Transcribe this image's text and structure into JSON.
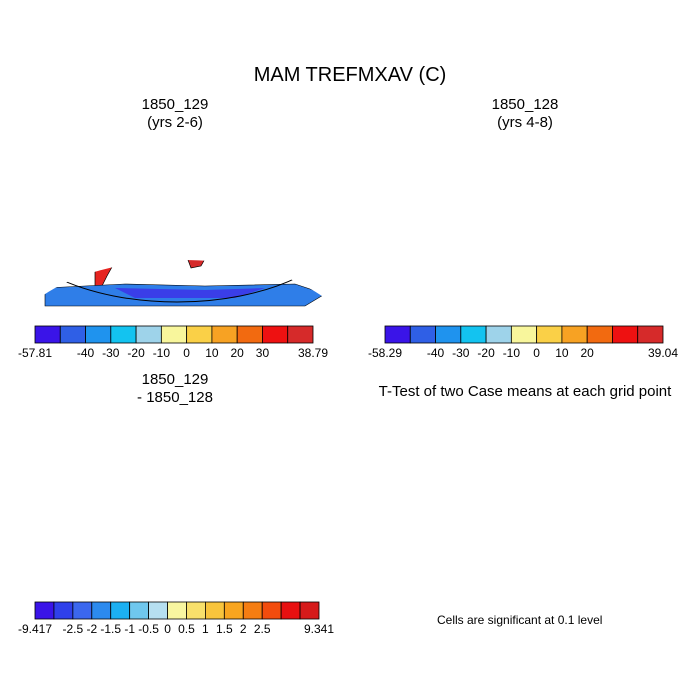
{
  "title": "MAM TREFMXAV (C)",
  "panels": [
    {
      "title_line1": "1850_129",
      "title_line2": "(yrs 2-6)"
    },
    {
      "title_line1": "1850_128",
      "title_line2": "(yrs 4-8)"
    },
    {
      "title_line1": "1850_129",
      "title_line2": "- 1850_128"
    },
    {
      "title_line1": "T-Test of two Case means at each grid point",
      "title_line2": ""
    }
  ],
  "colorbars": [
    {
      "colors": [
        "#3a14e8",
        "#2f5fe6",
        "#1f93ee",
        "#13c3f0",
        "#9ed3ea",
        "#f8f69c",
        "#fad047",
        "#f7a223",
        "#f26a10",
        "#ee1111",
        "#d62a2a"
      ],
      "labels": [
        "-57.81",
        "-40",
        "-30",
        "-20",
        "-10",
        "0",
        "10",
        "20",
        "30",
        "38.79"
      ],
      "label_slots": [
        0,
        2,
        3,
        4,
        5,
        6,
        7,
        8,
        9,
        10
      ]
    },
    {
      "colors": [
        "#3a14e8",
        "#2f5fe6",
        "#1f93ee",
        "#13c3f0",
        "#9ed3ea",
        "#f8f69c",
        "#fad047",
        "#f7a223",
        "#f26a10",
        "#ee1111",
        "#d62a2a"
      ],
      "labels": [
        "-58.29",
        "-40",
        "-30",
        "-20",
        "-10",
        "0",
        "10",
        "20",
        "39.04"
      ],
      "label_slots": [
        0,
        2,
        3,
        4,
        5,
        6,
        7,
        8,
        10
      ]
    },
    {
      "colors": [
        "#3a14e8",
        "#2f40ea",
        "#3b67ee",
        "#2c8aee",
        "#1cb0f2",
        "#6fc7ee",
        "#b6dff0",
        "#f8f6a0",
        "#f8e06b",
        "#f8c43c",
        "#f8a51f",
        "#f57d12",
        "#f24c0d",
        "#e81010",
        "#d61a1a"
      ],
      "labels": [
        "-9.417",
        "-2.5",
        "-2",
        "-1.5",
        "-1",
        "-0.5",
        "0",
        "0.5",
        "1",
        "1.5",
        "2",
        "2.5",
        "9.341"
      ],
      "label_slots": [
        0,
        2,
        3,
        4,
        5,
        6,
        7,
        8,
        9,
        10,
        11,
        12,
        14
      ]
    }
  ],
  "significance_note": "Cells are significant at 0.1 level",
  "map_colors": {
    "outline": "#000000",
    "significant": "#ee1111",
    "ocean": "#ffffff"
  }
}
